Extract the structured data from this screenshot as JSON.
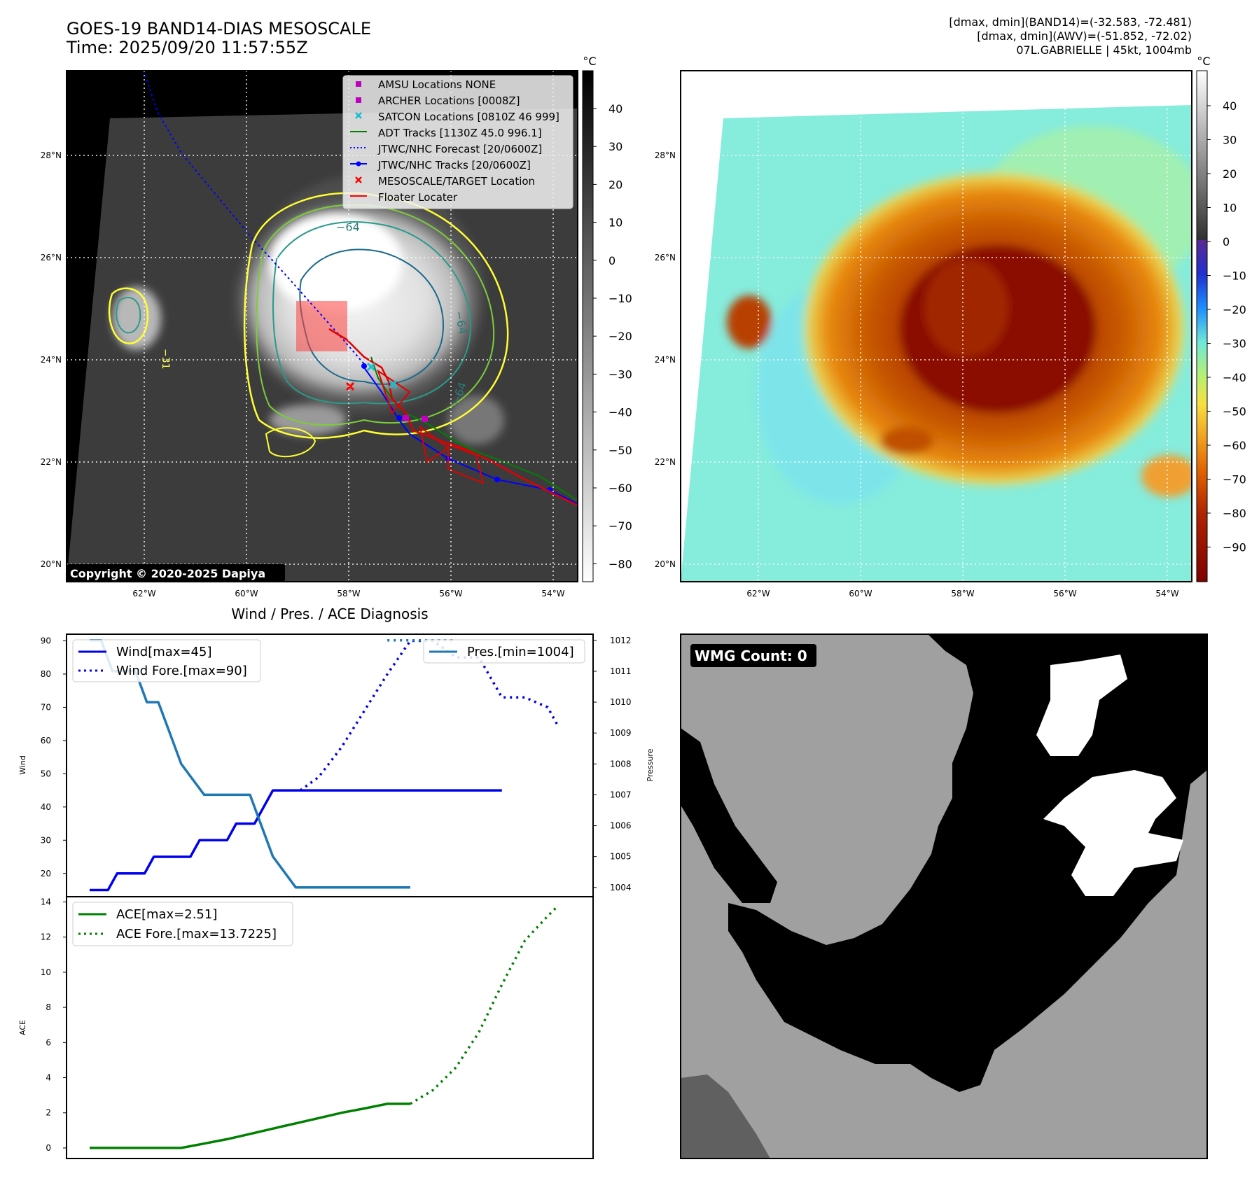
{
  "header": {
    "title_line1": "GOES-19 BAND14-DIAS MESOSCALE",
    "title_line2": "Time: 2025/09/20 11:57:55Z",
    "stats_line1": "[dmax, dmin](BAND14)=(-32.583, -72.481)",
    "stats_line2": "[dmax, dmin](AWV)=(-51.852, -72.02)",
    "stats_line3": "07L.GABRIELLE | 45kt, 1004mb"
  },
  "map_axes": {
    "lat_labels": [
      "28°N",
      "26°N",
      "24°N",
      "22°N",
      "20°N"
    ],
    "lon_labels": [
      "62°W",
      "60°W",
      "58°W",
      "56°W",
      "54°W"
    ],
    "copyright": "Copyright © 2020-2025 Dapiya",
    "contour_labels": [
      "−64",
      "−64",
      "−64",
      "−31"
    ]
  },
  "legend": {
    "items": [
      {
        "label": "AMSU Locations NONE",
        "color": "#c000c0"
      },
      {
        "label": "ARCHER Locations [0008Z]",
        "color": "#c000c0"
      },
      {
        "label": "SATCON Locations [0810Z 46 999]",
        "color": "#17becf"
      },
      {
        "label": "ADT Tracks [1130Z 45.0 996.1]",
        "color": "#008000"
      },
      {
        "label": "JTWC/NHC Forecast [20/0600Z]",
        "color": "#0000ff"
      },
      {
        "label": "JTWC/NHC Tracks [20/0600Z]",
        "color": "#0000ff"
      },
      {
        "label": "MESOSCALE/TARGET Location",
        "color": "#ff0000"
      },
      {
        "label": "Floater Locater",
        "color": "#ff0000"
      }
    ]
  },
  "colorbar_gray": {
    "unit": "°C",
    "ticks": [
      "40",
      "30",
      "20",
      "10",
      "0",
      "−10",
      "−20",
      "−30",
      "−40",
      "−50",
      "−60",
      "−70",
      "−80"
    ]
  },
  "colorbar_awv": {
    "unit": "°C",
    "ticks": [
      "40",
      "30",
      "20",
      "10",
      "0",
      "−10",
      "−20",
      "−30",
      "−40",
      "−50",
      "−60",
      "−70",
      "−80",
      "−90"
    ]
  },
  "wmg": {
    "label": "WMG Count: 0"
  },
  "chart_data": [
    {
      "type": "line",
      "title": "Wind / Pres. / ACE Diagnosis",
      "ylabel": "Wind",
      "ylim": [
        13,
        92
      ],
      "yticks": [
        "90",
        "80",
        "70",
        "60",
        "50",
        "40",
        "30",
        "20"
      ],
      "y2label": "Pressure",
      "y2lim": [
        1003.7,
        1012.2
      ],
      "y2ticks": [
        "1012",
        "1011",
        "1010",
        "1009",
        "1008",
        "1007",
        "1006",
        "1005",
        "1004"
      ],
      "xlim": [
        0,
        21.4
      ],
      "legend_left": [
        "Wind[max=45]",
        "Wind Fore.[max=90]"
      ],
      "legend_right": [
        "Pres.[min=1004]"
      ],
      "series": [
        {
          "name": "Wind[max=45]",
          "style": "solid",
          "color": "#0000ee",
          "y_axis": "left",
          "x": [
            0,
            0.4,
            0.8,
            1.2,
            1.6,
            2.0,
            2.4,
            2.8,
            3.2,
            3.6,
            4.0,
            4.4,
            4.8,
            5.2,
            5.6,
            6.0,
            6.4,
            6.8,
            7.2,
            7.6,
            8.0,
            8.4,
            8.8,
            9.2,
            9.6,
            10.0,
            10.4,
            10.8,
            11.2,
            11.6,
            12.0,
            12.4,
            12.8,
            13.2,
            13.6,
            14.0,
            14.4,
            14.8,
            15.2,
            15.6,
            16.0,
            16.4,
            16.8,
            17.2,
            17.6,
            18.0
          ],
          "values": [
            15,
            15,
            15,
            20,
            20,
            20,
            20,
            25,
            25,
            25,
            25,
            25,
            30,
            30,
            30,
            30,
            35,
            35,
            35,
            40,
            45,
            45,
            45,
            45,
            45,
            45,
            45,
            45,
            45,
            45,
            45,
            45,
            45,
            45,
            45,
            45,
            45,
            45,
            45,
            45,
            45,
            45,
            45,
            45,
            45,
            45
          ]
        },
        {
          "name": "Wind Fore.[max=90]",
          "style": "dotted",
          "color": "#0000ee",
          "y_axis": "left",
          "x": [
            9.2,
            10,
            11,
            12,
            13,
            14,
            15,
            16,
            17,
            18,
            19,
            20,
            20.4
          ],
          "values": [
            45,
            49,
            58,
            69,
            80,
            90,
            90,
            85,
            85,
            73,
            73,
            70,
            65
          ]
        },
        {
          "name": "Pres.[min=1004]",
          "style": "solid",
          "color": "#1f77b4",
          "y_axis": "right",
          "x": [
            0,
            0.5,
            1,
            2,
            2.5,
            3,
            3.5,
            4,
            5,
            6,
            7,
            7.5,
            8,
            9,
            10,
            11,
            12,
            13,
            14,
            9.2
          ],
          "values": [
            1012,
            1012,
            1011,
            1011,
            1010,
            1010,
            1009,
            1008,
            1007,
            1007,
            1007,
            1006,
            1005,
            1004,
            1004,
            1004,
            1004,
            1004,
            1004,
            1004
          ]
        },
        {
          "name": "Pres. Fore.",
          "style": "dotted",
          "color": "#1f77b4",
          "y_axis": "right",
          "x": [
            13,
            14,
            15,
            16
          ],
          "values": [
            1012,
            1012,
            1012,
            1012
          ]
        }
      ]
    },
    {
      "type": "line",
      "ylabel": "ACE",
      "ylim": [
        -0.6,
        14.3
      ],
      "yticks": [
        "14",
        "12",
        "10",
        "8",
        "6",
        "4",
        "2",
        "0"
      ],
      "xlim": [
        0,
        21.4
      ],
      "legend": [
        "ACE[max=2.51]",
        "ACE Fore.[max=13.7225]"
      ],
      "series": [
        {
          "name": "ACE[max=2.51]",
          "style": "solid",
          "color": "#008000",
          "x": [
            0,
            1,
            2,
            3,
            4,
            5,
            6,
            7,
            8,
            9,
            10,
            11,
            12,
            13,
            14
          ],
          "values": [
            0,
            0,
            0,
            0,
            0,
            0.25,
            0.5,
            0.8,
            1.1,
            1.4,
            1.7,
            2.0,
            2.25,
            2.51,
            2.51
          ]
        },
        {
          "name": "ACE Fore.[max=13.7225]",
          "style": "dotted",
          "color": "#008000",
          "x": [
            14,
            15,
            16,
            17,
            18,
            19,
            20,
            20.4
          ],
          "values": [
            2.51,
            3.3,
            4.6,
            6.6,
            9.3,
            11.8,
            13.2,
            13.7225
          ]
        }
      ]
    }
  ]
}
